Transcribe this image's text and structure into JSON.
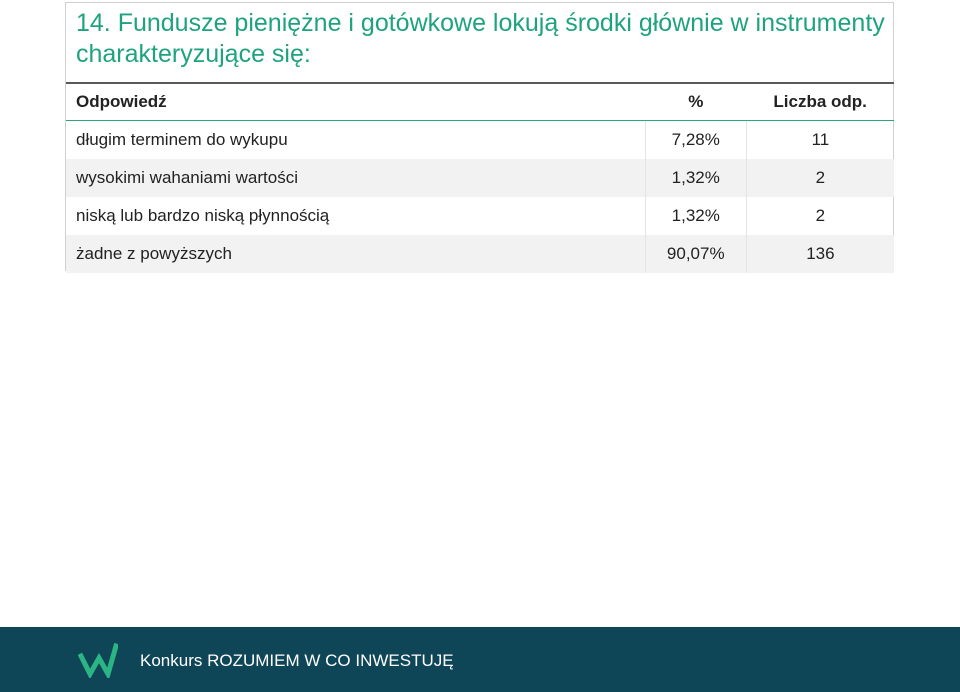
{
  "title": "14. Fundusze pieniężne i gotówkowe lokują środki głównie w instrumenty charakteryzujące się:",
  "table": {
    "headers": {
      "answer": "Odpowiedź",
      "percent": "%",
      "count": "Liczba odp."
    },
    "rows": [
      {
        "answer": "długim terminem do wykupu",
        "percent": "7,28%",
        "count": "11"
      },
      {
        "answer": "wysokimi wahaniami wartości",
        "percent": "1,32%",
        "count": "2"
      },
      {
        "answer": "niską lub bardzo niską płynnością",
        "percent": "1,32%",
        "count": "2"
      },
      {
        "answer": "żadne z powyższych",
        "percent": "90,07%",
        "count": "136"
      }
    ]
  },
  "footer": {
    "text": "Konkurs ROZUMIEM W CO INWESTUJĘ",
    "logo_icon": "w-logo-icon"
  },
  "colors": {
    "title": "#1fa37f",
    "footer_bg": "#0f4657",
    "accent_line": "#28a67e",
    "logo": "#2bb585"
  }
}
